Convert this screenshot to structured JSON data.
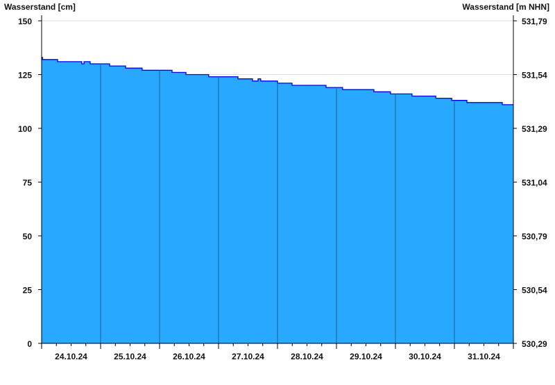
{
  "chart_data": {
    "type": "area",
    "ylabel_left": "Wasserstand [cm]",
    "ylabel_right": "Wasserstand [m NHN]",
    "ylim": [
      0,
      150
    ],
    "yticks_left": [
      "0",
      "25",
      "50",
      "75",
      "100",
      "125",
      "150"
    ],
    "yticks_right": [
      "530,29",
      "530,54",
      "530,79",
      "531,04",
      "531,29",
      "531,54",
      "531,79"
    ],
    "xticks": [
      "24.10.24",
      "25.10.24",
      "26.10.24",
      "27.10.24",
      "28.10.24",
      "29.10.24",
      "30.10.24",
      "31.10.24"
    ],
    "xlim": [
      "24.10.24 00:00",
      "01.11.24 00:00"
    ],
    "grid": true,
    "colors": {
      "fill": "#29a8ff",
      "line": "#0000ee",
      "day_line": "#1f5f8f",
      "grid": "#d8d8d8"
    },
    "series": [
      {
        "points": [
          [
            "24.10 00:00",
            133
          ],
          [
            "24.10 00:20",
            132
          ],
          [
            "24.10 06:30",
            131
          ],
          [
            "24.10 16:20",
            130
          ],
          [
            "24.10 17:15",
            131
          ],
          [
            "24.10 19:45",
            130
          ],
          [
            "25.10 03:40",
            129
          ],
          [
            "25.10 10:10",
            128
          ],
          [
            "25.10 16:55",
            127
          ],
          [
            "26.10 05:05",
            126
          ],
          [
            "26.10 10:45",
            125
          ],
          [
            "26.10 20:00",
            124
          ],
          [
            "27.10 07:55",
            123
          ],
          [
            "27.10 13:50",
            122
          ],
          [
            "27.10 16:05",
            123
          ],
          [
            "27.10 17:10",
            122
          ],
          [
            "28.10 00:00",
            121
          ],
          [
            "28.10 05:55",
            120
          ],
          [
            "28.10 19:45",
            119
          ],
          [
            "29.10 02:30",
            118
          ],
          [
            "29.10 15:15",
            117
          ],
          [
            "29.10 22:00",
            116
          ],
          [
            "30.10 06:45",
            115
          ],
          [
            "30.10 16:25",
            114
          ],
          [
            "30.10 22:55",
            113
          ],
          [
            "31.10 05:05",
            112
          ],
          [
            "31.10 19:30",
            111
          ],
          [
            "01.11 00:00",
            111
          ]
        ]
      }
    ]
  }
}
